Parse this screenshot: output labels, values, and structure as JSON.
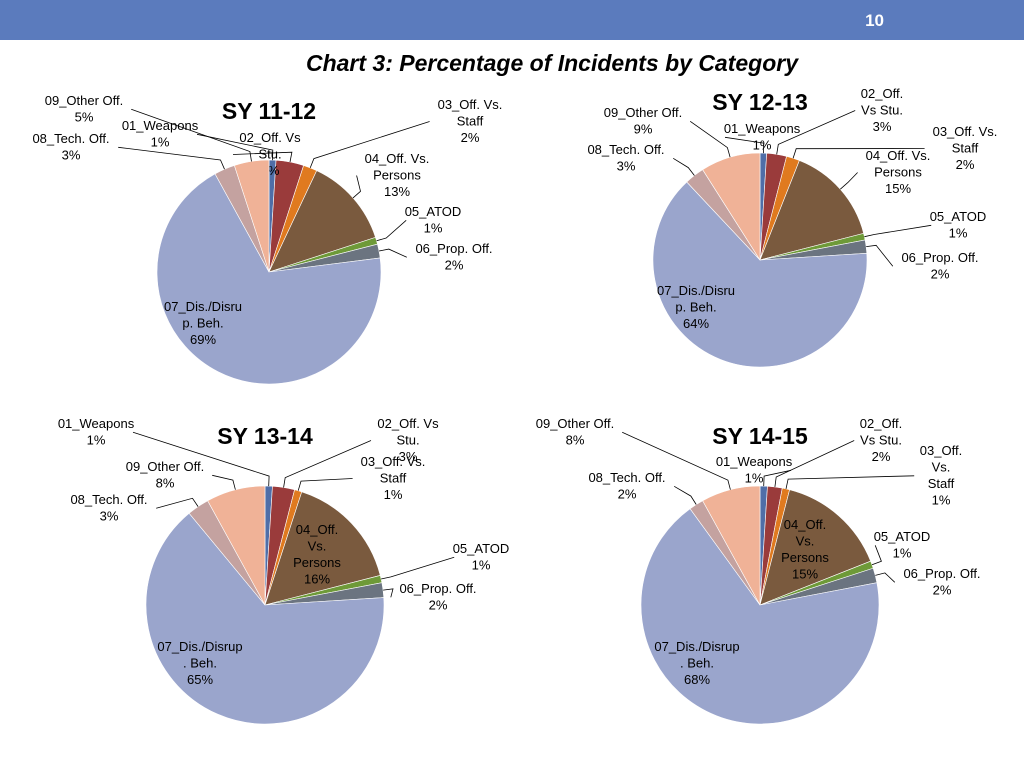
{
  "slide": {
    "page_number": "10",
    "title": "Chart 3: Percentage of Incidents by Category"
  },
  "colors": {
    "header": "#5b7bbd",
    "01_Weapons": "#4f6ea8",
    "02_Off_Vs_Stu": "#9a3b3b",
    "03_Off_Vs_Staff": "#e07a1f",
    "04_Off_Vs_Persons": "#7a5a3e",
    "05_ATOD": "#6e9a38",
    "06_Prop_Off": "#6b7480",
    "07_Dis_Disrup_Beh": "#9aa5cc",
    "08_Tech_Off": "#c4a2a0",
    "09_Other_Off": "#f0b297"
  },
  "chart_data": [
    {
      "type": "pie",
      "title": "SY 11-12",
      "start_angle_deg": 0,
      "direction": "clockwise",
      "slices": [
        {
          "label": "01_Weapons",
          "value": 1,
          "text": [
            "01_Weapons",
            "1%"
          ]
        },
        {
          "label": "02_Off. Vs Stu.",
          "value": 4,
          "text": [
            "02_Off. Vs",
            "Stu.",
            "4%"
          ]
        },
        {
          "label": "03_Off. Vs. Staff",
          "value": 2,
          "text": [
            "03_Off. Vs.",
            "Staff",
            "2%"
          ]
        },
        {
          "label": "04_Off. Vs. Persons",
          "value": 13,
          "text": [
            "04_Off. Vs.",
            "Persons",
            "13%"
          ]
        },
        {
          "label": "05_ATOD",
          "value": 1,
          "text": [
            "05_ATOD",
            "1%"
          ]
        },
        {
          "label": "06_Prop. Off.",
          "value": 2,
          "text": [
            "06_Prop. Off.",
            "2%"
          ]
        },
        {
          "label": "07_Dis./Disrup. Beh.",
          "value": 69,
          "text": [
            "07_Dis./Disru",
            "p. Beh.",
            "69%"
          ]
        },
        {
          "label": "08_Tech. Off.",
          "value": 3,
          "text": [
            "08_Tech. Off.",
            "3%"
          ]
        },
        {
          "label": "09_Other Off.",
          "value": 5,
          "text": [
            "09_Other Off.",
            "5%"
          ]
        }
      ]
    },
    {
      "type": "pie",
      "title": "SY 12-13",
      "start_angle_deg": 0,
      "direction": "clockwise",
      "slices": [
        {
          "label": "01_Weapons",
          "value": 1,
          "text": [
            "01_Weapons",
            "1%"
          ]
        },
        {
          "label": "02_Off. Vs Stu.",
          "value": 3,
          "text": [
            "02_Off.",
            "Vs Stu.",
            "3%"
          ]
        },
        {
          "label": "03_Off. Vs. Staff",
          "value": 2,
          "text": [
            "03_Off. Vs.",
            "Staff",
            "2%"
          ]
        },
        {
          "label": "04_Off. Vs. Persons",
          "value": 15,
          "text": [
            "04_Off. Vs.",
            "Persons",
            "15%"
          ]
        },
        {
          "label": "05_ATOD",
          "value": 1,
          "text": [
            "05_ATOD",
            "1%"
          ]
        },
        {
          "label": "06_Prop. Off.",
          "value": 2,
          "text": [
            "06_Prop. Off.",
            "2%"
          ]
        },
        {
          "label": "07_Dis./Disrup. Beh.",
          "value": 64,
          "text": [
            "07_Dis./Disru",
            "p. Beh.",
            "64%"
          ]
        },
        {
          "label": "08_Tech. Off.",
          "value": 3,
          "text": [
            "08_Tech. Off.",
            "3%"
          ]
        },
        {
          "label": "09_Other Off.",
          "value": 9,
          "text": [
            "09_Other Off.",
            "9%"
          ]
        }
      ]
    },
    {
      "type": "pie",
      "title": "SY 13-14",
      "start_angle_deg": 0,
      "direction": "clockwise",
      "slices": [
        {
          "label": "01_Weapons",
          "value": 1,
          "text": [
            "01_Weapons",
            "1%"
          ]
        },
        {
          "label": "02_Off. Vs Stu.",
          "value": 3,
          "text": [
            "02_Off. Vs",
            "Stu.",
            "3%"
          ]
        },
        {
          "label": "03_Off. Vs. Staff",
          "value": 1,
          "text": [
            "03_Off. Vs.",
            "Staff",
            "1%"
          ]
        },
        {
          "label": "04_Off. Vs. Persons",
          "value": 16,
          "text": [
            "04_Off.",
            "Vs.",
            "Persons",
            "16%"
          ]
        },
        {
          "label": "05_ATOD",
          "value": 1,
          "text": [
            "05_ATOD",
            "1%"
          ]
        },
        {
          "label": "06_Prop. Off.",
          "value": 2,
          "text": [
            "06_Prop. Off.",
            "2%"
          ]
        },
        {
          "label": "07_Dis./Disrup. Beh.",
          "value": 65,
          "text": [
            "07_Dis./Disrup",
            ". Beh.",
            "65%"
          ]
        },
        {
          "label": "08_Tech. Off.",
          "value": 3,
          "text": [
            "08_Tech. Off.",
            "3%"
          ]
        },
        {
          "label": "09_Other Off.",
          "value": 8,
          "text": [
            "09_Other Off.",
            "8%"
          ]
        }
      ]
    },
    {
      "type": "pie",
      "title": "SY 14-15",
      "start_angle_deg": 0,
      "direction": "clockwise",
      "slices": [
        {
          "label": "01_Weapons",
          "value": 1,
          "text": [
            "01_Weapons",
            "1%"
          ]
        },
        {
          "label": "02_Off. Vs Stu.",
          "value": 2,
          "text": [
            "02_Off.",
            "Vs Stu.",
            "2%"
          ]
        },
        {
          "label": "03_Off. Vs. Staff",
          "value": 1,
          "text": [
            "03_Off.",
            "Vs.",
            "Staff",
            "1%"
          ]
        },
        {
          "label": "04_Off. Vs. Persons",
          "value": 15,
          "text": [
            "04_Off.",
            "Vs.",
            "Persons",
            "15%"
          ]
        },
        {
          "label": "05_ATOD",
          "value": 1,
          "text": [
            "05_ATOD",
            "1%"
          ]
        },
        {
          "label": "06_Prop. Off.",
          "value": 2,
          "text": [
            "06_Prop. Off.",
            "2%"
          ]
        },
        {
          "label": "07_Dis./Disrup. Beh.",
          "value": 68,
          "text": [
            "07_Dis./Disrup",
            ". Beh.",
            "68%"
          ]
        },
        {
          "label": "08_Tech. Off.",
          "value": 2,
          "text": [
            "08_Tech. Off.",
            "2%"
          ]
        },
        {
          "label": "09_Other Off.",
          "value": 8,
          "text": [
            "09_Other Off.",
            "8%"
          ]
        }
      ]
    }
  ]
}
